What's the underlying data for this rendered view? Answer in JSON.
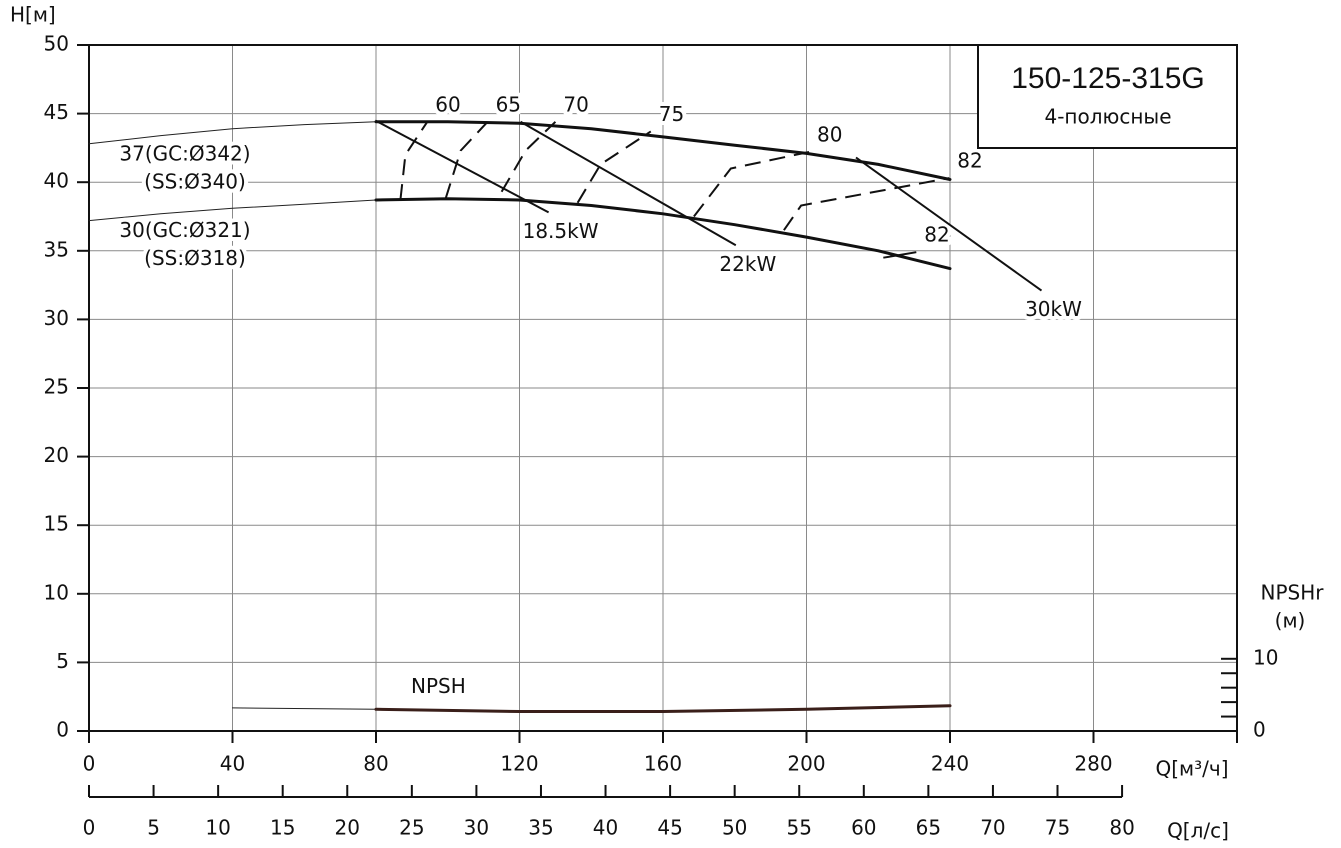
{
  "chart_data": {
    "type": "line",
    "title": "150-125-315G",
    "subtitle": "4-полюсные",
    "y_label": "H[м]",
    "x_label": "Q[м³/ч]",
    "x2_label": "Q[л/с]",
    "y2_label": [
      "NPSHr",
      "(м)"
    ],
    "xlim": [
      0,
      320
    ],
    "xticks": [
      0,
      40,
      80,
      120,
      160,
      200,
      240,
      280
    ],
    "x2lim": [
      0,
      88.9
    ],
    "x2ticks": [
      0,
      5,
      10,
      15,
      20,
      25,
      30,
      35,
      40,
      45,
      50,
      55,
      60,
      65,
      70,
      75,
      80
    ],
    "ylim": [
      0,
      50
    ],
    "yticks": [
      0,
      5,
      10,
      15,
      20,
      25,
      30,
      35,
      40,
      45,
      50
    ],
    "y2lim": [
      0,
      95
    ],
    "y2ticks": [
      0,
      10
    ],
    "y2minor_ticks": [
      2,
      4,
      6,
      8
    ],
    "grid": true,
    "series": [
      {
        "color": "#222222",
        "width": 1,
        "label": [
          "37(GC:Ø342)",
          "(SS:Ø340)"
        ],
        "x": [
          0,
          20,
          40,
          60,
          80
        ],
        "values": [
          42.8,
          43.4,
          43.9,
          44.2,
          44.4
        ]
      },
      {
        "color": "#111111",
        "width": 3,
        "x": [
          80,
          100,
          120,
          140,
          160,
          180,
          200,
          220,
          240
        ],
        "values": [
          44.4,
          44.4,
          44.3,
          43.9,
          43.3,
          42.7,
          42.1,
          41.3,
          40.2
        ]
      },
      {
        "color": "#222222",
        "width": 1,
        "label": [
          "30(GC:Ø321)",
          "(SS:Ø318)"
        ],
        "x": [
          0,
          20,
          40,
          60,
          80
        ],
        "values": [
          37.2,
          37.7,
          38.1,
          38.4,
          38.7
        ]
      },
      {
        "color": "#111111",
        "width": 3,
        "x": [
          80,
          100,
          120,
          140,
          160,
          180,
          200,
          220,
          240
        ],
        "values": [
          38.7,
          38.8,
          38.7,
          38.3,
          37.7,
          36.9,
          36.0,
          35.0,
          33.7
        ]
      },
      {
        "color": "#222222",
        "width": 1,
        "axis": "y2",
        "x": [
          40,
          80
        ],
        "values": [
          3.2,
          3.0
        ]
      },
      {
        "name": "NPSH",
        "color": "#3a1f1a",
        "width": 3,
        "axis": "y2",
        "x": [
          80,
          120,
          160,
          200,
          240
        ],
        "values": [
          3.0,
          2.7,
          2.7,
          3.0,
          3.5
        ]
      }
    ],
    "efficiency_curves": [
      {
        "efficiency": 60,
        "dashed": true,
        "x": [
          86.8,
          88.2,
          94.3
        ],
        "values": [
          38.7,
          42.0,
          44.4
        ]
      },
      {
        "efficiency": 65,
        "dashed": true,
        "x": [
          99.4,
          103.6,
          111.1
        ],
        "values": [
          38.8,
          42.3,
          44.4
        ]
      },
      {
        "efficiency": 70,
        "dashed": true,
        "x": [
          115.0,
          121.7,
          130.0
        ],
        "values": [
          39.3,
          42.3,
          44.4
        ]
      },
      {
        "efficiency": 75,
        "dashed": true,
        "x": [
          136.2,
          142.6,
          156.6
        ],
        "values": [
          38.5,
          41.3,
          43.7
        ]
      },
      {
        "efficiency": 80,
        "dashed": true,
        "x": [
          168.6,
          178.9,
          200.7
        ],
        "values": [
          37.5,
          41.0,
          42.2
        ]
      },
      {
        "efficiency": 82,
        "dashed": true,
        "x": [
          193.7,
          198.5,
          239.8
        ],
        "values": [
          36.5,
          38.3,
          40.3
        ]
      },
      {
        "efficiency": 82,
        "dashed": false,
        "x": [
          221.4,
          230.6
        ],
        "values": [
          34.5,
          34.9
        ]
      }
    ],
    "power_lines": [
      {
        "label": "18.5kW",
        "x": [
          79.8,
          128.1
        ],
        "values": [
          44.5,
          37.8
        ]
      },
      {
        "label": "22kW",
        "x": [
          120.3,
          180.3
        ],
        "values": [
          44.4,
          35.4
        ]
      },
      {
        "label": "30kW",
        "x": [
          213.8,
          265.5
        ],
        "values": [
          41.8,
          32.1
        ]
      }
    ]
  }
}
